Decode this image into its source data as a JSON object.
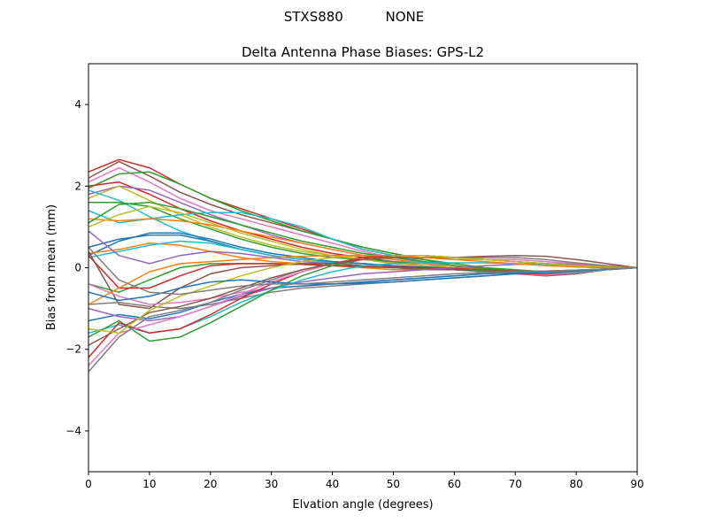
{
  "chart_data": {
    "type": "line",
    "suptitle": "STXS880          NONE",
    "title": "Delta Antenna Phase Biases: GPS-L2",
    "xlabel": "Elvation angle (degrees)",
    "ylabel": "Bias from mean (mm)",
    "xlim": [
      0,
      90
    ],
    "ylim": [
      -5,
      5
    ],
    "xticks": [
      0,
      10,
      20,
      30,
      40,
      50,
      60,
      70,
      80,
      90
    ],
    "yticks": [
      -4,
      -2,
      0,
      2,
      4
    ],
    "grid": false,
    "legend": "none",
    "x": [
      0,
      5,
      10,
      15,
      20,
      25,
      30,
      35,
      40,
      45,
      50,
      55,
      60,
      65,
      70,
      75,
      80,
      85,
      90
    ],
    "series": [
      {
        "color": "#d62728",
        "values": [
          2.35,
          2.65,
          2.45,
          2.05,
          1.7,
          1.45,
          1.2,
          0.95,
          0.7,
          0.45,
          0.3,
          0.2,
          0.05,
          -0.05,
          -0.1,
          -0.15,
          -0.1,
          -0.05,
          0
        ]
      },
      {
        "color": "#8c564b",
        "values": [
          2.2,
          2.6,
          2.25,
          1.85,
          1.55,
          1.3,
          1.1,
          0.9,
          0.7,
          0.5,
          0.35,
          0.2,
          0.05,
          -0.05,
          -0.15,
          -0.2,
          -0.15,
          -0.05,
          0
        ]
      },
      {
        "color": "#e377c2",
        "values": [
          2.1,
          2.45,
          2.1,
          1.7,
          1.4,
          1.2,
          1.0,
          0.8,
          0.6,
          0.4,
          0.25,
          0.12,
          0.0,
          -0.08,
          -0.15,
          -0.18,
          -0.12,
          -0.05,
          0
        ]
      },
      {
        "color": "#2ca02c",
        "values": [
          1.95,
          2.3,
          2.35,
          2.05,
          1.7,
          1.4,
          1.15,
          0.9,
          0.7,
          0.5,
          0.35,
          0.2,
          0.1,
          0.0,
          -0.05,
          -0.1,
          -0.08,
          -0.04,
          0
        ]
      },
      {
        "color": "#d62728",
        "values": [
          2.0,
          2.1,
          1.8,
          1.45,
          1.15,
          0.9,
          0.7,
          0.5,
          0.35,
          0.25,
          0.15,
          0.05,
          -0.05,
          -0.1,
          -0.15,
          -0.15,
          -0.1,
          -0.05,
          0
        ]
      },
      {
        "color": "#9467bd",
        "values": [
          1.8,
          2.0,
          1.9,
          1.6,
          1.3,
          1.05,
          0.8,
          0.6,
          0.45,
          0.3,
          0.2,
          0.1,
          0.0,
          -0.05,
          -0.1,
          -0.12,
          -0.1,
          -0.05,
          0
        ]
      },
      {
        "color": "#bcbd22",
        "values": [
          1.7,
          2.0,
          1.65,
          1.3,
          1.0,
          0.75,
          0.55,
          0.4,
          0.3,
          0.2,
          0.12,
          0.05,
          -0.02,
          -0.08,
          -0.12,
          -0.12,
          -0.08,
          -0.04,
          0
        ]
      },
      {
        "color": "#17becf",
        "values": [
          1.9,
          1.65,
          1.25,
          0.9,
          0.65,
          0.45,
          0.3,
          0.2,
          0.15,
          0.1,
          0.05,
          0.0,
          -0.05,
          -0.1,
          -0.12,
          -0.12,
          -0.08,
          -0.04,
          0
        ]
      },
      {
        "color": "#2ca02c",
        "values": [
          1.6,
          1.6,
          1.5,
          1.2,
          0.95,
          0.7,
          0.5,
          0.35,
          0.25,
          0.2,
          0.15,
          0.1,
          0.0,
          -0.05,
          -0.1,
          -0.1,
          -0.08,
          -0.04,
          0
        ]
      },
      {
        "color": "#17becf",
        "values": [
          1.4,
          1.1,
          1.2,
          1.3,
          1.35,
          1.35,
          1.2,
          1.0,
          0.7,
          0.45,
          0.3,
          0.15,
          0.05,
          -0.05,
          -0.1,
          -0.12,
          -0.1,
          -0.05,
          0
        ]
      },
      {
        "color": "#ff7f0e",
        "values": [
          1.2,
          1.15,
          1.2,
          1.15,
          1.05,
          0.9,
          0.75,
          0.6,
          0.45,
          0.3,
          0.2,
          0.1,
          0.0,
          -0.05,
          -0.1,
          -0.1,
          -0.08,
          -0.04,
          0
        ]
      },
      {
        "color": "#2ca02c",
        "values": [
          1.1,
          1.55,
          1.6,
          1.45,
          1.25,
          1.05,
          0.85,
          0.65,
          0.5,
          0.35,
          0.25,
          0.15,
          0.05,
          -0.02,
          -0.08,
          -0.1,
          -0.08,
          -0.04,
          0
        ]
      },
      {
        "color": "#bcbd22",
        "values": [
          1.0,
          1.3,
          1.5,
          1.35,
          1.1,
          0.85,
          0.65,
          0.45,
          0.3,
          0.2,
          0.1,
          0.05,
          0.0,
          -0.05,
          -0.1,
          -0.1,
          -0.08,
          -0.04,
          0
        ]
      },
      {
        "color": "#1f77b4",
        "values": [
          0.5,
          0.7,
          0.8,
          0.8,
          0.65,
          0.45,
          0.3,
          0.2,
          0.15,
          0.1,
          0.05,
          0.02,
          -0.02,
          -0.06,
          -0.1,
          -0.1,
          -0.08,
          -0.04,
          0
        ]
      },
      {
        "color": "#1f77b4",
        "values": [
          0.3,
          0.65,
          0.85,
          0.85,
          0.7,
          0.5,
          0.35,
          0.25,
          0.15,
          0.1,
          0.05,
          0.0,
          -0.04,
          -0.08,
          -0.1,
          -0.1,
          -0.08,
          -0.04,
          0
        ]
      },
      {
        "color": "#ff7f0e",
        "values": [
          0.35,
          0.45,
          0.6,
          0.55,
          0.4,
          0.25,
          0.15,
          0.1,
          0.05,
          0.0,
          -0.05,
          -0.05,
          -0.05,
          -0.08,
          -0.1,
          -0.1,
          -0.08,
          -0.04,
          0
        ]
      },
      {
        "color": "#17becf",
        "values": [
          0.25,
          0.4,
          0.55,
          0.65,
          0.6,
          0.45,
          0.3,
          0.2,
          0.12,
          0.05,
          0.0,
          -0.02,
          -0.05,
          -0.08,
          -0.1,
          -0.1,
          -0.08,
          -0.04,
          0
        ]
      },
      {
        "color": "#9467bd",
        "values": [
          0.9,
          0.3,
          0.1,
          0.3,
          0.4,
          0.35,
          0.25,
          0.15,
          0.1,
          0.05,
          0.02,
          -0.02,
          -0.05,
          -0.08,
          -0.1,
          -0.1,
          -0.08,
          -0.04,
          0
        ]
      },
      {
        "color": "#2ca02c",
        "values": [
          -0.4,
          -0.6,
          -0.3,
          0.0,
          0.1,
          0.1,
          0.1,
          0.08,
          0.05,
          0.02,
          0.0,
          -0.02,
          -0.05,
          -0.08,
          -0.1,
          -0.1,
          -0.08,
          -0.04,
          0
        ]
      },
      {
        "color": "#d62728",
        "values": [
          0.3,
          -0.5,
          -0.5,
          -0.2,
          0.05,
          0.1,
          0.1,
          0.08,
          0.05,
          0.03,
          0.02,
          0.0,
          -0.02,
          -0.05,
          -0.08,
          -0.08,
          -0.06,
          -0.03,
          0
        ]
      },
      {
        "color": "#8c564b",
        "values": [
          0.4,
          -0.9,
          -1.0,
          -0.5,
          -0.15,
          0.0,
          0.05,
          0.1,
          0.1,
          0.05,
          0.0,
          -0.05,
          -0.05,
          -0.05,
          -0.08,
          -0.08,
          -0.06,
          -0.03,
          0
        ]
      },
      {
        "color": "#e377c2",
        "values": [
          -0.4,
          -0.7,
          -0.9,
          -0.85,
          -0.75,
          -0.6,
          -0.5,
          -0.45,
          -0.4,
          -0.35,
          -0.3,
          -0.25,
          -0.2,
          -0.15,
          -0.12,
          -0.1,
          -0.08,
          -0.04,
          0
        ]
      },
      {
        "color": "#7f7f7f",
        "values": [
          -0.9,
          -0.85,
          -0.95,
          -1.0,
          -0.9,
          -0.75,
          -0.6,
          -0.5,
          -0.45,
          -0.4,
          -0.35,
          -0.3,
          -0.25,
          -0.2,
          -0.15,
          -0.1,
          -0.08,
          -0.04,
          0
        ]
      },
      {
        "color": "#1f77b4",
        "values": [
          -1.3,
          -1.15,
          -1.25,
          -1.1,
          -0.85,
          -0.65,
          -0.5,
          -0.45,
          -0.4,
          -0.35,
          -0.3,
          -0.25,
          -0.2,
          -0.15,
          -0.12,
          -0.1,
          -0.08,
          -0.04,
          0
        ]
      },
      {
        "color": "#9467bd",
        "values": [
          -1.0,
          -1.2,
          -1.3,
          -1.2,
          -0.95,
          -0.7,
          -0.5,
          -0.35,
          -0.25,
          -0.15,
          -0.1,
          -0.05,
          0.0,
          0.05,
          0.08,
          0.1,
          0.08,
          0.04,
          0
        ]
      },
      {
        "color": "#17becf",
        "values": [
          -1.6,
          -1.4,
          -1.6,
          -1.5,
          -1.2,
          -0.85,
          -0.55,
          -0.3,
          -0.1,
          0.05,
          0.1,
          0.12,
          0.12,
          0.12,
          0.1,
          0.08,
          0.05,
          0.02,
          0
        ]
      },
      {
        "color": "#2ca02c",
        "values": [
          -1.7,
          -1.3,
          -1.8,
          -1.7,
          -1.35,
          -0.95,
          -0.55,
          -0.2,
          0.05,
          0.2,
          0.3,
          0.3,
          0.25,
          0.2,
          0.15,
          0.1,
          0.05,
          0.02,
          0
        ]
      },
      {
        "color": "#d62728",
        "values": [
          -2.2,
          -1.35,
          -1.6,
          -1.5,
          -1.15,
          -0.75,
          -0.4,
          -0.1,
          0.1,
          0.25,
          0.3,
          0.3,
          0.25,
          0.2,
          0.15,
          0.1,
          0.05,
          0.02,
          0
        ]
      },
      {
        "color": "#e377c2",
        "values": [
          -2.4,
          -1.6,
          -1.4,
          -1.2,
          -0.95,
          -0.65,
          -0.35,
          -0.1,
          0.1,
          0.2,
          0.25,
          0.25,
          0.2,
          0.2,
          0.2,
          0.15,
          0.1,
          0.05,
          0
        ]
      },
      {
        "color": "#7f7f7f",
        "values": [
          -2.55,
          -1.7,
          -1.2,
          -1.05,
          -0.85,
          -0.55,
          -0.3,
          -0.05,
          0.1,
          0.2,
          0.25,
          0.25,
          0.25,
          0.25,
          0.25,
          0.2,
          0.12,
          0.05,
          0
        ]
      },
      {
        "color": "#8c564b",
        "values": [
          -1.9,
          -1.5,
          -1.1,
          -0.95,
          -0.75,
          -0.5,
          -0.25,
          -0.05,
          0.1,
          0.2,
          0.25,
          0.25,
          0.25,
          0.28,
          0.3,
          0.28,
          0.2,
          0.1,
          0
        ]
      },
      {
        "color": "#bcbd22",
        "values": [
          -1.5,
          -1.6,
          -1.05,
          -0.7,
          -0.45,
          -0.2,
          0.0,
          0.15,
          0.25,
          0.3,
          0.3,
          0.3,
          0.25,
          0.2,
          0.15,
          0.1,
          0.05,
          0.02,
          0
        ]
      },
      {
        "color": "#ff7f0e",
        "values": [
          -0.9,
          -0.5,
          -0.1,
          0.1,
          0.15,
          0.2,
          0.25,
          0.28,
          0.3,
          0.3,
          0.3,
          0.25,
          0.2,
          0.15,
          0.1,
          0.05,
          0.02,
          0.0,
          0
        ]
      },
      {
        "color": "#1f77b4",
        "values": [
          -0.6,
          -0.8,
          -0.7,
          -0.5,
          -0.35,
          -0.3,
          -0.35,
          -0.4,
          -0.4,
          -0.38,
          -0.35,
          -0.3,
          -0.25,
          -0.2,
          -0.15,
          -0.1,
          -0.07,
          -0.03,
          0
        ]
      },
      {
        "color": "#7f7f7f",
        "values": [
          0.5,
          -0.3,
          -0.6,
          -0.65,
          -0.55,
          -0.45,
          -0.4,
          -0.4,
          -0.35,
          -0.3,
          -0.25,
          -0.2,
          -0.15,
          -0.12,
          -0.1,
          -0.08,
          -0.06,
          -0.03,
          0
        ]
      }
    ]
  }
}
